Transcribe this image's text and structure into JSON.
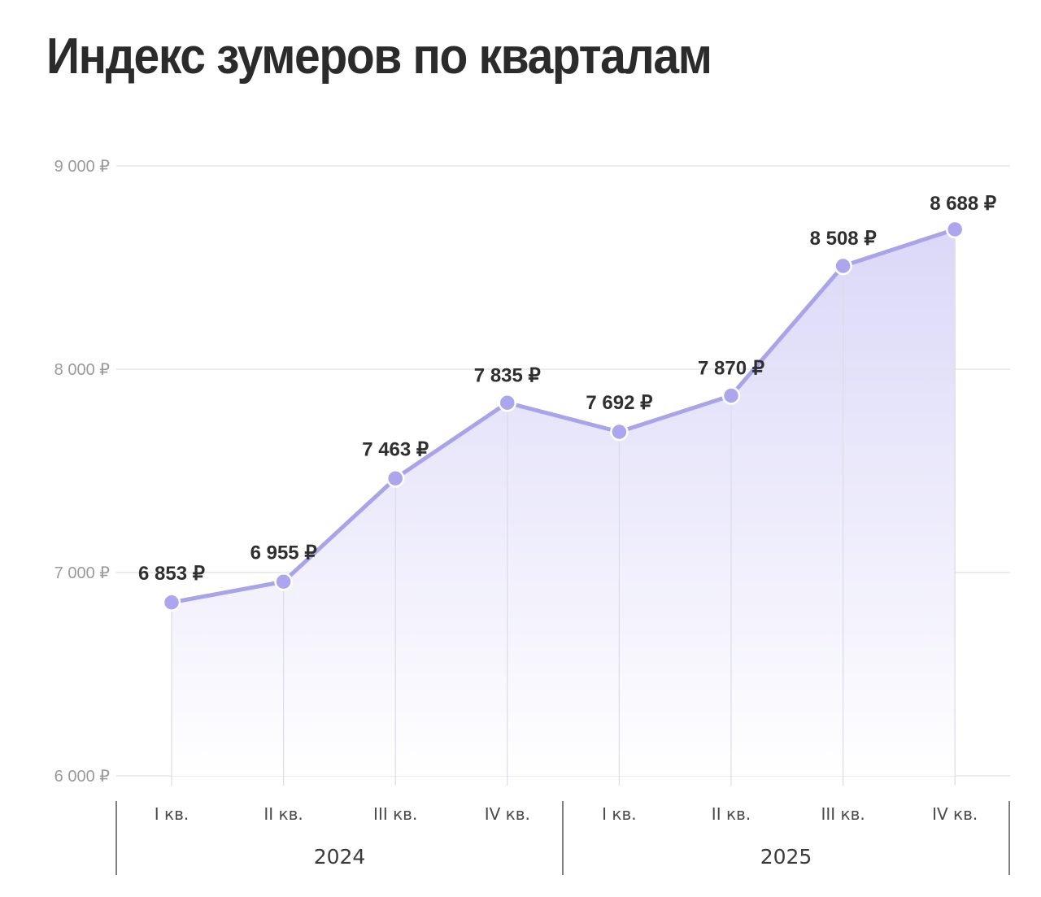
{
  "title": "Индекс зумеров по кварталам",
  "colors": {
    "line": "#a9a3ea",
    "marker": "#aca6ee",
    "area_top": "#d9d6f7",
    "area_bottom": "#ffffff",
    "grid": "#e6e6e6",
    "title": "#2b2b2b"
  },
  "chart_data": {
    "type": "area",
    "title": "Индекс зумеров по кварталам",
    "xlabel": "",
    "ylabel": "",
    "ylim": [
      6000,
      9000
    ],
    "y_ticks": [
      {
        "value": 9000,
        "label": "9 000 ₽"
      },
      {
        "value": 8000,
        "label": "8 000 ₽"
      },
      {
        "value": 7000,
        "label": "7 000 ₽"
      },
      {
        "value": 6000,
        "label": "6 000 ₽"
      }
    ],
    "grid": true,
    "legend": "none",
    "categories": [
      "I кв. 2024",
      "II кв. 2024",
      "III кв. 2024",
      "IV кв. 2024",
      "I кв. 2025",
      "II кв. 2025",
      "III кв. 2025",
      "IV кв. 2025"
    ],
    "quarter_labels": [
      "I кв.",
      "II кв.",
      "III кв.",
      "IV кв.",
      "I кв.",
      "II кв.",
      "III кв.",
      "IV кв."
    ],
    "year_groups": [
      {
        "label": "2024",
        "quarters": 4
      },
      {
        "label": "2025",
        "quarters": 4
      }
    ],
    "series": [
      {
        "name": "Индекс зумеров",
        "values": [
          6853,
          6955,
          7463,
          7835,
          7692,
          7870,
          8508,
          8688
        ],
        "labels": [
          "6 853 ₽",
          "6 955 ₽",
          "7 463 ₽",
          "7 835 ₽",
          "7 692 ₽",
          "7 870 ₽",
          "8 508 ₽",
          "8 688 ₽"
        ]
      }
    ]
  }
}
